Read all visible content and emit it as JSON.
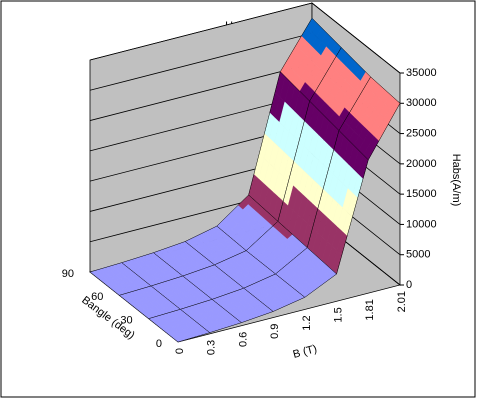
{
  "chart_data": {
    "type": "surface",
    "title": "Habs",
    "x_label": "B (T)",
    "depth_label": "Bangle (deg)",
    "y_label": "Habs(A/m)",
    "categories": [
      "0",
      "0.3",
      "0.6",
      "0.9",
      "1.2",
      "1.5",
      "1.81",
      "2.01"
    ],
    "series": [
      {
        "name": "0",
        "values": [
          0,
          200,
          500,
          1000,
          2000,
          4500,
          22000,
          30000
        ]
      },
      {
        "name": "30",
        "values": [
          0,
          200,
          500,
          1000,
          2000,
          5000,
          23000,
          30500
        ]
      },
      {
        "name": "60",
        "values": [
          0,
          200,
          500,
          1000,
          2000,
          5500,
          24000,
          31500
        ]
      },
      {
        "name": "90",
        "values": [
          0,
          200,
          500,
          1000,
          2200,
          6000,
          25000,
          32500
        ]
      }
    ],
    "ylim": [
      0,
      35000
    ],
    "yticks": [
      0,
      5000,
      10000,
      15000,
      20000,
      25000,
      30000,
      35000
    ],
    "band_colors": [
      "#9999FF",
      "#993366",
      "#FFFFCC",
      "#CCFFFF",
      "#660066",
      "#FF8080",
      "#0066CC"
    ],
    "wall_color": "#C0C0C0",
    "grid": true
  }
}
